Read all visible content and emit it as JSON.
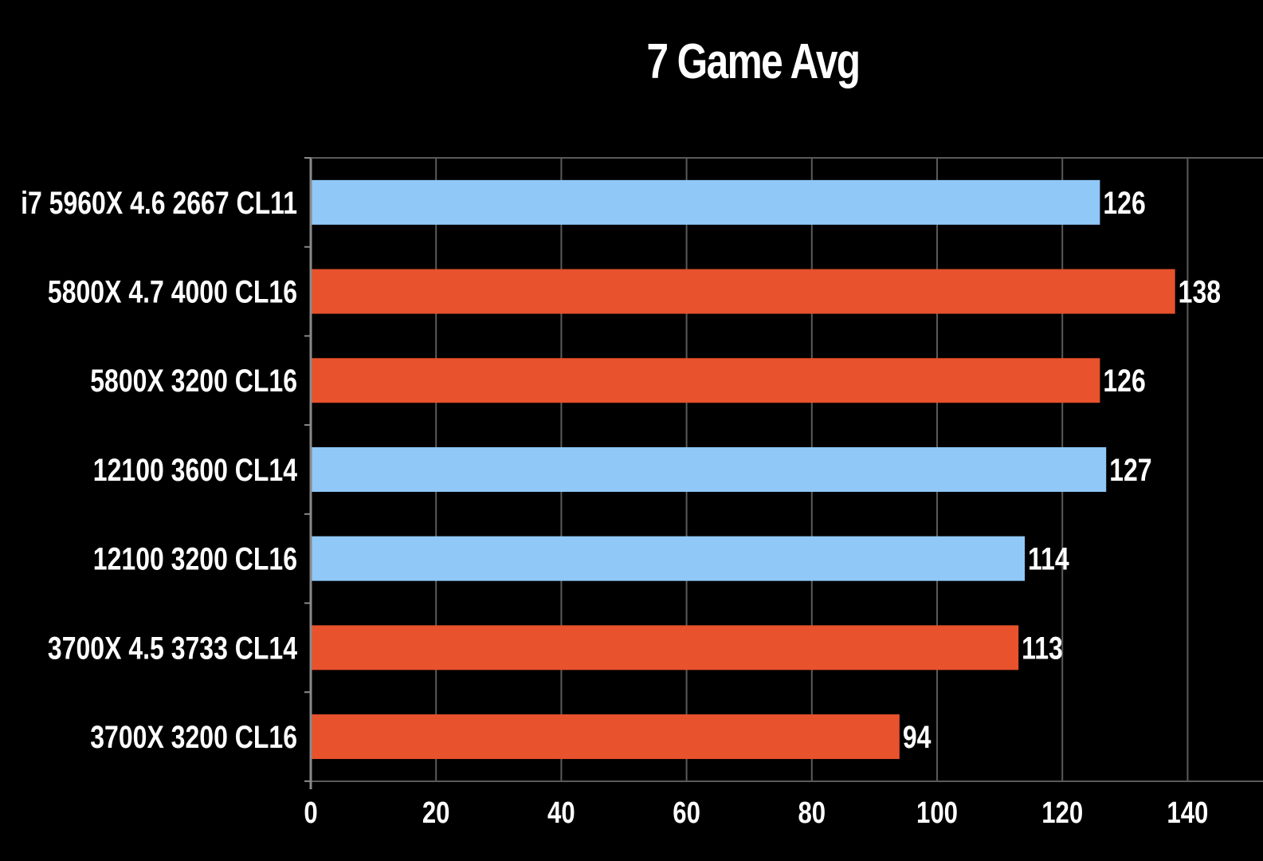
{
  "chart_data": {
    "type": "bar",
    "orientation": "horizontal",
    "title": "7 Game Avg",
    "xlabel": "",
    "ylabel": "",
    "categories": [
      "i7 5960X 4.6 2667 CL11",
      "5800X 4.7 4000 CL16",
      "5800X 3200 CL16",
      "12100 3600 CL14",
      "12100 3200 CL16",
      "3700X 4.5 3733 CL14",
      "3700X 3200 CL16"
    ],
    "values": [
      126,
      138,
      126,
      127,
      114,
      113,
      94
    ],
    "data_labels": [
      "126",
      "138",
      "126",
      "127",
      "114",
      "113",
      "94"
    ],
    "bar_colors": [
      "#90c8f8",
      "#e8522c",
      "#e8522c",
      "#90c8f8",
      "#90c8f8",
      "#e8522c",
      "#e8522c"
    ],
    "xlim": [
      0,
      140
    ],
    "xticks": [
      0,
      20,
      40,
      60,
      80,
      100,
      120,
      140
    ],
    "xtick_labels": [
      "0",
      "20",
      "40",
      "60",
      "80",
      "100",
      "120",
      "140"
    ],
    "grid": "vertical",
    "legend": "none",
    "colors": {
      "background": "#000000",
      "text": "#ffffff",
      "grid": "#5a5a5a",
      "intel": "#90c8f8",
      "amd": "#e8522c"
    }
  }
}
